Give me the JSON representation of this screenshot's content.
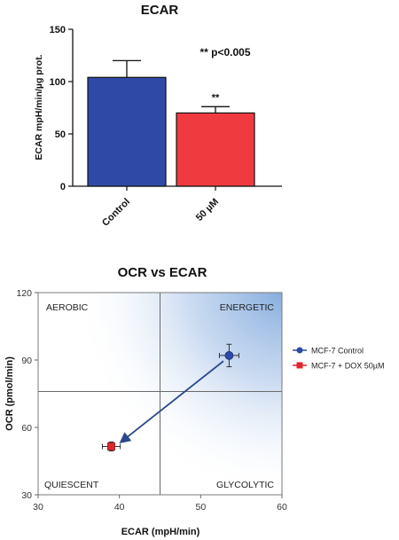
{
  "chart_data": [
    {
      "type": "bar",
      "title": "ECAR",
      "ylabel": "ECAR mpH/min/µg prot.",
      "ylim": [
        0,
        150
      ],
      "yticks": [
        0,
        50,
        100,
        150
      ],
      "categories": [
        "Control",
        "50 µM"
      ],
      "values": [
        104,
        70
      ],
      "errors": [
        16,
        6
      ],
      "colors": [
        "#2f4aa6",
        "#ef3b3f"
      ],
      "bar_annotations": [
        "",
        "**"
      ],
      "annotation": "** p<0.005",
      "grid": false
    },
    {
      "type": "scatter",
      "title": "OCR vs ECAR",
      "xlabel": "ECAR (mpH/min)",
      "ylabel": "OCR (pmol/min)",
      "xlim": [
        30,
        60
      ],
      "ylim": [
        30,
        120
      ],
      "xticks": [
        30,
        40,
        50,
        60
      ],
      "yticks": [
        30,
        60,
        90,
        120
      ],
      "divider_x": 45,
      "divider_y": 76,
      "quadrant_labels": [
        "AEROBIC",
        "ENERGETIC",
        "QUIESCENT",
        "GLYCOLYTIC"
      ],
      "series": [
        {
          "name": "MCF-7 Control",
          "x": 53.5,
          "y": 92,
          "xerr": 1.2,
          "yerr": 5,
          "marker": "circle",
          "color": "#2e4aa8"
        },
        {
          "name": "MCF-7 + DOX 50µM",
          "x": 39,
          "y": 51.5,
          "xerr": 1.1,
          "yerr": 2,
          "marker": "square",
          "color": "#e0262c"
        }
      ],
      "arrow": {
        "from": [
          52.8,
          89.5
        ],
        "to": [
          40.2,
          53.5
        ]
      },
      "legend_position": "right",
      "grid": false
    }
  ]
}
